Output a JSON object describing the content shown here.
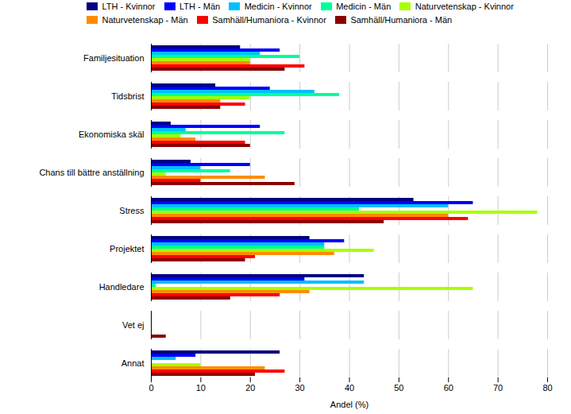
{
  "chart_data": {
    "type": "bar",
    "orientation": "horizontal",
    "categories": [
      "Familjesituation",
      "Tidsbrist",
      "Ekonomiska skäl",
      "Chans till bättre anställning",
      "Stress",
      "Projektet",
      "Handledare",
      "Vet ej",
      "Annat"
    ],
    "series": [
      {
        "name": "LTH - Kvinnor",
        "color": "#000080",
        "values": [
          18,
          13,
          4,
          8,
          53,
          32,
          43,
          0,
          26
        ]
      },
      {
        "name": "LTH - Män",
        "color": "#0000FF",
        "values": [
          26,
          24,
          22,
          20,
          65,
          39,
          31,
          0,
          9
        ]
      },
      {
        "name": "Medicin - Kvinnor",
        "color": "#00BFFF",
        "values": [
          22,
          33,
          7,
          10,
          60,
          35,
          43,
          0,
          5
        ]
      },
      {
        "name": "Medicin - Män",
        "color": "#00FF99",
        "values": [
          30,
          38,
          27,
          16,
          42,
          35,
          1,
          0,
          0
        ]
      },
      {
        "name": "Naturvetenskap - Kvinnor",
        "color": "#AAFF00",
        "values": [
          20,
          20,
          6,
          3,
          78,
          45,
          65,
          0,
          10
        ]
      },
      {
        "name": "Naturvetenskap - Män",
        "color": "#FF8C00",
        "values": [
          20,
          14,
          9,
          23,
          60,
          37,
          32,
          0,
          23
        ]
      },
      {
        "name": "Samhäll/Humaniora - Kvinnor",
        "color": "#FF0000",
        "values": [
          31,
          19,
          19,
          10,
          64,
          21,
          26,
          0,
          27
        ]
      },
      {
        "name": "Samhäll/Humaniora - Män",
        "color": "#8B0000",
        "values": [
          27,
          14,
          20,
          29,
          47,
          19,
          16,
          3,
          21
        ]
      }
    ],
    "xlabel": "Andel (%)",
    "xlim": [
      0,
      80
    ],
    "xticks": [
      0,
      10,
      20,
      30,
      40,
      50,
      60,
      70,
      80
    ],
    "grid": true,
    "legend": "upper right"
  }
}
